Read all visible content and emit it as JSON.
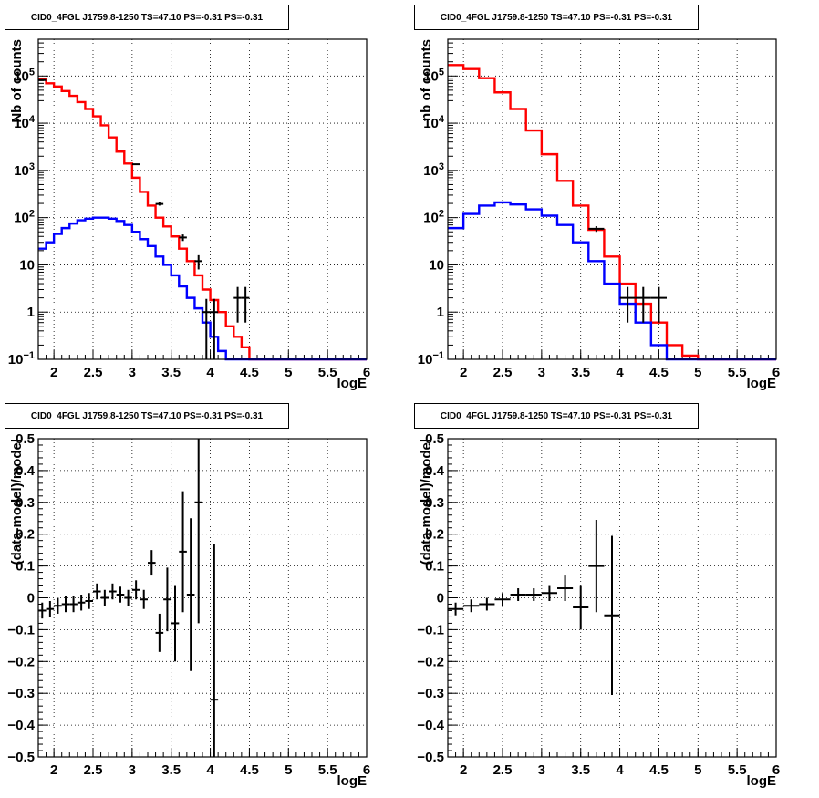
{
  "chart_data": [
    {
      "id": "tl",
      "type": "line",
      "title": "CID0_4FGL J1759.8-1250 TS=47.10 PS=-0.31 PS=-0.31",
      "xlabel": "logE",
      "ylabel": "Nb of counts",
      "yscale": "log",
      "xlim": [
        1.8,
        6.0
      ],
      "ylim": [
        0.1,
        600000
      ],
      "grid": true,
      "x_ticks": [
        "2",
        "2.5",
        "3",
        "3.5",
        "4",
        "4.5",
        "5",
        "5.5",
        "6"
      ],
      "y_ticks": [
        "10^-1",
        "1",
        "10",
        "10^2",
        "10^3",
        "10^4",
        "10^5"
      ],
      "series": [
        {
          "kind": "hist",
          "color": "#ff0000",
          "edges": [
            1.8,
            1.9,
            2.0,
            2.1,
            2.2,
            2.3,
            2.4,
            2.5,
            2.6,
            2.7,
            2.8,
            2.9,
            3.0,
            3.1,
            3.2,
            3.3,
            3.4,
            3.5,
            3.6,
            3.7,
            3.8,
            3.9,
            4.0,
            4.1,
            4.2,
            4.3,
            4.4,
            4.5,
            4.6,
            4.7,
            4.8,
            4.9,
            5.0,
            5.1,
            5.2,
            5.3,
            5.4,
            5.5,
            5.6,
            5.7,
            5.8,
            5.9,
            6.0
          ],
          "values": [
            85000,
            70000,
            60000,
            48000,
            38000,
            28000,
            20000,
            14000,
            9000,
            5000,
            2500,
            1400,
            700,
            350,
            180,
            100,
            65,
            40,
            22,
            12,
            6,
            3,
            1.8,
            1.0,
            0.5,
            0.3,
            0.18,
            0.1,
            0.1,
            0.1,
            0.1,
            0.1,
            0.1,
            0.1,
            0.1,
            0.1,
            0.1,
            0.1,
            0.1,
            0.1,
            0.1,
            0.1
          ]
        },
        {
          "kind": "hist",
          "color": "#0000ff",
          "edges": [
            1.8,
            1.9,
            2.0,
            2.1,
            2.2,
            2.3,
            2.4,
            2.5,
            2.6,
            2.7,
            2.8,
            2.9,
            3.0,
            3.1,
            3.2,
            3.3,
            3.4,
            3.5,
            3.6,
            3.7,
            3.8,
            3.9,
            4.0,
            4.1,
            4.2,
            4.3,
            4.4,
            4.5,
            4.6,
            4.7,
            4.8,
            4.9,
            5.0,
            5.1,
            5.2,
            5.3,
            5.4,
            5.5,
            5.6,
            5.7,
            5.8,
            5.9,
            6.0
          ],
          "values": [
            22,
            30,
            45,
            60,
            75,
            88,
            95,
            100,
            100,
            95,
            85,
            70,
            50,
            35,
            25,
            15,
            10,
            6,
            3.5,
            2.0,
            1.2,
            0.6,
            0.3,
            0.15,
            0.1,
            0.1,
            0.1,
            0.1,
            0.1,
            0.1,
            0.1,
            0.1,
            0.1,
            0.1,
            0.1,
            0.1,
            0.1,
            0.1,
            0.1,
            0.1,
            0.1,
            0.1
          ]
        },
        {
          "kind": "errors",
          "color": "#000000",
          "points": [
            {
              "x": 1.85,
              "y": 82000,
              "xerr": 0.05,
              "yerr": 300
            },
            {
              "x": 3.05,
              "y": 1350,
              "xerr": 0.05,
              "yerr": 40
            },
            {
              "x": 3.35,
              "y": 195,
              "xerr": 0.05,
              "yerr": 15
            },
            {
              "x": 3.65,
              "y": 38,
              "xerr": 0.05,
              "yerr": 6
            },
            {
              "x": 3.85,
              "y": 12,
              "xerr": 0.05,
              "yerr": 4
            },
            {
              "x": 3.95,
              "y": 1,
              "xerr": 0.05,
              "yerr": 0.9
            },
            {
              "x": 4.05,
              "y": 1,
              "xerr": 0.05,
              "yerr": 0.9
            },
            {
              "x": 4.35,
              "y": 2,
              "xerr": 0.05,
              "yerr": 1.4
            },
            {
              "x": 4.45,
              "y": 2,
              "xerr": 0.05,
              "yerr": 1.4
            }
          ]
        }
      ]
    },
    {
      "id": "tr",
      "type": "line",
      "title": "CID0_4FGL J1759.8-1250 TS=47.10 PS=-0.31 PS=-0.31",
      "xlabel": "logE",
      "ylabel": "nb of counts",
      "yscale": "log",
      "xlim": [
        1.8,
        6.0
      ],
      "ylim": [
        0.1,
        600000
      ],
      "grid": true,
      "x_ticks": [
        "2",
        "2.5",
        "3",
        "3.5",
        "4",
        "4.5",
        "5",
        "5.5",
        "6"
      ],
      "y_ticks": [
        "10^-1",
        "1",
        "10",
        "10^2",
        "10^3",
        "10^4",
        "10^5"
      ],
      "series": [
        {
          "kind": "hist",
          "color": "#ff0000",
          "edges": [
            1.8,
            2.0,
            2.2,
            2.4,
            2.6,
            2.8,
            3.0,
            3.2,
            3.4,
            3.6,
            3.8,
            4.0,
            4.2,
            4.4,
            4.6,
            4.8,
            5.0,
            5.2,
            5.4,
            5.6,
            5.8,
            6.0
          ],
          "values": [
            170000,
            140000,
            90000,
            45000,
            20000,
            7000,
            2200,
            600,
            180,
            55,
            15,
            4,
            1.5,
            0.6,
            0.2,
            0.12,
            0.1,
            0.1,
            0.1,
            0.1,
            0.1
          ]
        },
        {
          "kind": "hist",
          "color": "#0000ff",
          "edges": [
            1.8,
            2.0,
            2.2,
            2.4,
            2.6,
            2.8,
            3.0,
            3.2,
            3.4,
            3.6,
            3.8,
            4.0,
            4.2,
            4.4,
            4.6,
            4.8,
            5.0,
            5.2,
            5.4,
            5.6,
            5.8,
            6.0
          ],
          "values": [
            60,
            120,
            180,
            210,
            190,
            150,
            110,
            70,
            30,
            12,
            4,
            1.5,
            0.6,
            0.2,
            0.1,
            0.1,
            0.1,
            0.1,
            0.1,
            0.1,
            0.1
          ]
        },
        {
          "kind": "errors",
          "color": "#000000",
          "points": [
            {
              "x": 3.7,
              "y": 58,
              "xerr": 0.1,
              "yerr": 8
            },
            {
              "x": 4.1,
              "y": 2,
              "xerr": 0.1,
              "yerr": 1.4
            },
            {
              "x": 4.3,
              "y": 2,
              "xerr": 0.1,
              "yerr": 1.4
            },
            {
              "x": 4.5,
              "y": 2,
              "xerr": 0.1,
              "yerr": 1.4
            }
          ]
        }
      ]
    },
    {
      "id": "bl",
      "type": "scatter",
      "title": "CID0_4FGL J1759.8-1250 TS=47.10 PS=-0.31 PS=-0.31",
      "xlabel": "logE",
      "ylabel": "(data-model)/model",
      "yscale": "linear",
      "xlim": [
        1.8,
        6.0
      ],
      "ylim": [
        -0.5,
        0.5
      ],
      "grid": true,
      "x_ticks": [
        "2",
        "2.5",
        "3",
        "3.5",
        "4",
        "4.5",
        "5",
        "5.5",
        "6"
      ],
      "y_ticks": [
        "-0.5",
        "-0.4",
        "-0.3",
        "-0.2",
        "-0.1",
        "0",
        "0.1",
        "0.2",
        "0.3",
        "0.4",
        "0.5"
      ],
      "series": [
        {
          "kind": "errors",
          "color": "#000000",
          "points": [
            {
              "x": 1.85,
              "y": -0.04,
              "xerr": 0.05,
              "yerr": 0.025
            },
            {
              "x": 1.95,
              "y": -0.035,
              "xerr": 0.05,
              "yerr": 0.025
            },
            {
              "x": 2.05,
              "y": -0.025,
              "xerr": 0.05,
              "yerr": 0.025
            },
            {
              "x": 2.15,
              "y": -0.02,
              "xerr": 0.05,
              "yerr": 0.025
            },
            {
              "x": 2.25,
              "y": -0.02,
              "xerr": 0.05,
              "yerr": 0.025
            },
            {
              "x": 2.35,
              "y": -0.015,
              "xerr": 0.05,
              "yerr": 0.025
            },
            {
              "x": 2.45,
              "y": -0.01,
              "xerr": 0.05,
              "yerr": 0.025
            },
            {
              "x": 2.55,
              "y": 0.02,
              "xerr": 0.05,
              "yerr": 0.025
            },
            {
              "x": 2.65,
              "y": 0.0,
              "xerr": 0.05,
              "yerr": 0.025
            },
            {
              "x": 2.75,
              "y": 0.02,
              "xerr": 0.05,
              "yerr": 0.025
            },
            {
              "x": 2.85,
              "y": 0.01,
              "xerr": 0.05,
              "yerr": 0.025
            },
            {
              "x": 2.95,
              "y": 0.0,
              "xerr": 0.05,
              "yerr": 0.025
            },
            {
              "x": 3.05,
              "y": 0.025,
              "xerr": 0.05,
              "yerr": 0.03
            },
            {
              "x": 3.15,
              "y": -0.005,
              "xerr": 0.05,
              "yerr": 0.03
            },
            {
              "x": 3.25,
              "y": 0.11,
              "xerr": 0.05,
              "yerr": 0.04
            },
            {
              "x": 3.35,
              "y": -0.11,
              "xerr": 0.05,
              "yerr": 0.06
            },
            {
              "x": 3.45,
              "y": -0.005,
              "xerr": 0.05,
              "yerr": 0.1
            },
            {
              "x": 3.55,
              "y": -0.08,
              "xerr": 0.05,
              "yerr": 0.12
            },
            {
              "x": 3.65,
              "y": 0.145,
              "xerr": 0.05,
              "yerr": 0.19
            },
            {
              "x": 3.75,
              "y": 0.01,
              "xerr": 0.05,
              "yerr": 0.24
            },
            {
              "x": 3.85,
              "y": 0.3,
              "xerr": 0.05,
              "yerr": 0.38
            },
            {
              "x": 4.05,
              "y": -0.32,
              "xerr": 0.05,
              "yerr": 0.49
            }
          ]
        }
      ]
    },
    {
      "id": "br",
      "type": "scatter",
      "title": "CID0_4FGL J1759.8-1250 TS=47.10 PS=-0.31 PS=-0.31",
      "xlabel": "logE",
      "ylabel": "(data-model)/model",
      "yscale": "linear",
      "xlim": [
        1.8,
        6.0
      ],
      "ylim": [
        -0.5,
        0.5
      ],
      "grid": true,
      "x_ticks": [
        "2",
        "2.5",
        "3",
        "3.5",
        "4",
        "4.5",
        "5",
        "5.5",
        "6"
      ],
      "y_ticks": [
        "-0.5",
        "-0.4",
        "-0.3",
        "-0.2",
        "-0.1",
        "0",
        "0.1",
        "0.2",
        "0.3",
        "0.4",
        "0.5"
      ],
      "series": [
        {
          "kind": "errors",
          "color": "#000000",
          "points": [
            {
              "x": 1.9,
              "y": -0.035,
              "xerr": 0.1,
              "yerr": 0.02
            },
            {
              "x": 2.1,
              "y": -0.025,
              "xerr": 0.1,
              "yerr": 0.02
            },
            {
              "x": 2.3,
              "y": -0.02,
              "xerr": 0.1,
              "yerr": 0.02
            },
            {
              "x": 2.5,
              "y": -0.005,
              "xerr": 0.1,
              "yerr": 0.02
            },
            {
              "x": 2.7,
              "y": 0.01,
              "xerr": 0.1,
              "yerr": 0.02
            },
            {
              "x": 2.9,
              "y": 0.01,
              "xerr": 0.1,
              "yerr": 0.02
            },
            {
              "x": 3.1,
              "y": 0.015,
              "xerr": 0.1,
              "yerr": 0.025
            },
            {
              "x": 3.3,
              "y": 0.03,
              "xerr": 0.1,
              "yerr": 0.04
            },
            {
              "x": 3.5,
              "y": -0.03,
              "xerr": 0.1,
              "yerr": 0.07
            },
            {
              "x": 3.7,
              "y": 0.1,
              "xerr": 0.1,
              "yerr": 0.145
            },
            {
              "x": 3.9,
              "y": -0.055,
              "xerr": 0.1,
              "yerr": 0.25
            }
          ]
        }
      ]
    }
  ]
}
